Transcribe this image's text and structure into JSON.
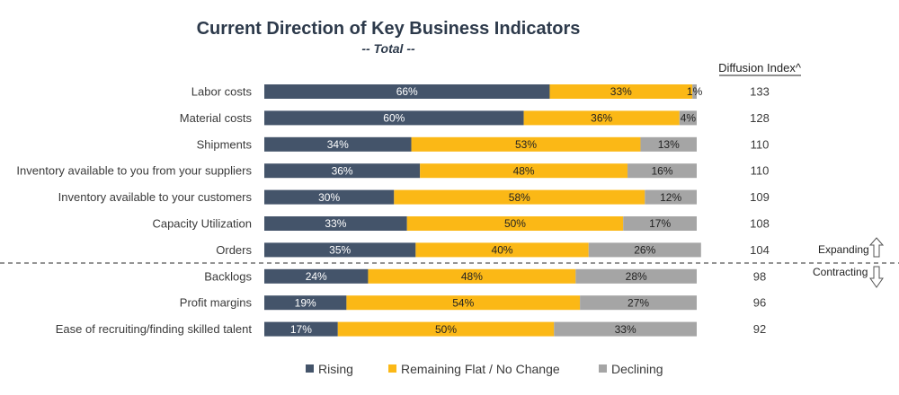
{
  "chart_data": {
    "type": "bar",
    "orientation": "horizontal",
    "stacked": true,
    "percent_stacked": true,
    "title": "Current Direction of Key Business Indicators",
    "subtitle": "-- Total --",
    "categories": [
      "Labor costs",
      "Material costs",
      "Shipments",
      "Inventory available to you from your suppliers",
      "Inventory available to your customers",
      "Capacity Utilization",
      "Orders",
      "Backlogs",
      "Profit margins",
      "Ease of recruiting/finding skilled talent"
    ],
    "series": [
      {
        "name": "Rising",
        "color": "#44546a",
        "label_color": "#ffffff",
        "values": [
          66,
          60,
          34,
          36,
          30,
          33,
          35,
          24,
          19,
          17
        ]
      },
      {
        "name": "Remaining Flat / No Change",
        "color": "#fbb816",
        "label_color": "#222222",
        "values": [
          33,
          36,
          53,
          48,
          58,
          50,
          40,
          48,
          54,
          50
        ]
      },
      {
        "name": "Declining",
        "color": "#a5a5a5",
        "label_color": "#222222",
        "values": [
          1,
          4,
          13,
          16,
          12,
          17,
          26,
          28,
          27,
          33
        ]
      }
    ],
    "value_suffix": "%",
    "diffusion_index": {
      "header": "Diffusion Index^",
      "values": [
        133,
        128,
        110,
        110,
        109,
        108,
        104,
        98,
        96,
        92
      ]
    },
    "divider_after_index": 6,
    "expanding_label": "Expanding",
    "contracting_label": "Contracting",
    "xlim": [
      0,
      100
    ],
    "grid": false,
    "legend_position": "bottom"
  }
}
